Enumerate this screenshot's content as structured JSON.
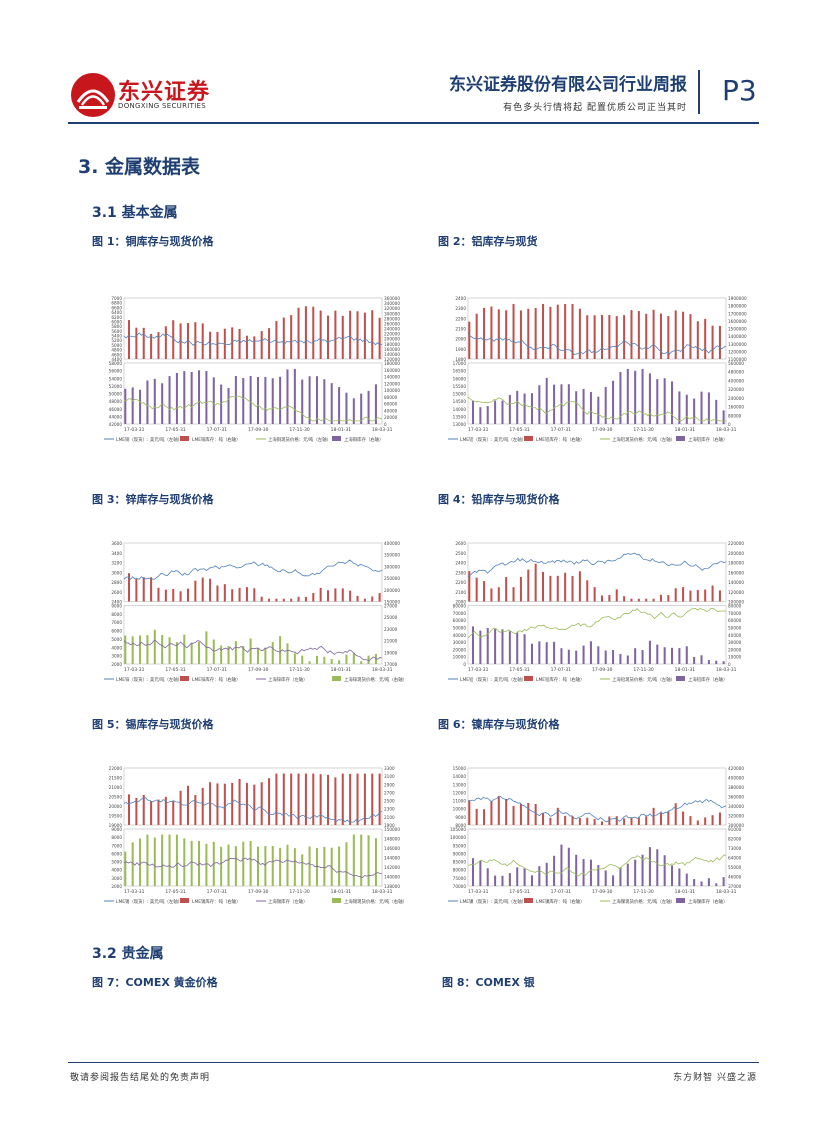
{
  "header": {
    "logo_cn": "东兴证券",
    "logo_en": "DONGXING SECURITIES",
    "title": "东兴证券股份有限公司行业周报",
    "subtitle": "有色多头行情将起  配置优质公司正当其时",
    "page": "P3"
  },
  "section": {
    "title": "3. 金属数据表",
    "sub1": "3.1  基本金属",
    "sub2": "3.2  贵金属"
  },
  "figures": [
    {
      "caption": "图 1：铜库存与现货价格"
    },
    {
      "caption": "图 2：铝库存与现货"
    },
    {
      "caption": "图 3：锌库存与现货价格"
    },
    {
      "caption": "图 4：铅库存与现货价格"
    },
    {
      "caption": "图 5：锡库存与现货价格"
    },
    {
      "caption": "图 6：镍库存与现货价格"
    },
    {
      "caption": "图 7：COMEX 黄金价格"
    },
    {
      "caption": "图 8：COMEX 银"
    }
  ],
  "footer": {
    "left": "敬请参阅报告结尾处的免责声明",
    "right": "东方财智 兴盛之源"
  },
  "colors": {
    "brand_blue": "#1f3f73",
    "brand_red": "#c8161d",
    "bar_red": "#c0504d",
    "bar_purple": "#8064a2",
    "bar_green": "#9bbb59",
    "line_blue": "#4f81bd"
  },
  "chart_data": [
    {
      "id": "fig1",
      "type": "bar+line",
      "x_ticks": [
        "17-03-31",
        "17-05-31",
        "17-07-31",
        "17-09-30",
        "17-11-30",
        "18-01-31",
        "18-03-31"
      ],
      "top": {
        "y_left": [
          "4400",
          "4600",
          "4800",
          "5000",
          "5200",
          "5400",
          "5600",
          "5800",
          "6000",
          "6200",
          "6400",
          "6600",
          "6800",
          "7000"
        ],
        "y_right": [
          "120000",
          "140000",
          "160000",
          "180000",
          "200000",
          "220000",
          "240000",
          "260000",
          "280000",
          "300000",
          "320000",
          "340000",
          "360000"
        ],
        "bar_color": "bar_red",
        "line_color": "line_blue"
      },
      "bottom": {
        "y_left": [
          "42000",
          "44000",
          "46000",
          "48000",
          "50000",
          "52000",
          "54000",
          "56000",
          "58000"
        ],
        "y_right": [
          "0",
          "20000",
          "40000",
          "60000",
          "80000",
          "100000",
          "120000",
          "140000",
          "160000",
          "180000"
        ],
        "bar_color": "bar_purple",
        "line_color": "bar_green"
      },
      "legend": [
        "LME铜（现货）: 美元/吨（左轴）",
        "LME铜库存：吨（右轴）",
        "上海铜现货价格：元/吨（左轴）",
        "上海铜库存（右轴）"
      ]
    },
    {
      "id": "fig2",
      "type": "bar+line",
      "x_ticks": [
        "17-03-31",
        "17-05-31",
        "17-07-31",
        "17-09-30",
        "17-11-30",
        "18-01-31",
        "18-03-31"
      ],
      "top": {
        "y_left": [
          "1800",
          "1900",
          "2000",
          "2100",
          "2200",
          "2300",
          "2400"
        ],
        "y_right": [
          "1100000",
          "1200000",
          "1300000",
          "1400000",
          "1500000",
          "1600000",
          "1700000",
          "1800000",
          "1900000"
        ],
        "bar_color": "bar_red",
        "line_color": "line_blue"
      },
      "bottom": {
        "y_left": [
          "13000",
          "13500",
          "14000",
          "14500",
          "15000",
          "15500",
          "16000",
          "16500",
          "17000"
        ],
        "y_right": [
          "0",
          "80000",
          "160000",
          "240000",
          "320000",
          "400000",
          "480000",
          "560000"
        ],
        "bar_color": "bar_purple",
        "line_color": "bar_green"
      },
      "legend": [
        "LME铝（现货）: 美元/吨（左轴）",
        "LME铝库存：吨（右轴）",
        "上海铝现货价格：元/吨（左轴）",
        "上海铝库存（右轴）"
      ]
    },
    {
      "id": "fig3",
      "type": "bar+line",
      "x_ticks": [
        "17-03-31",
        "17-05-31",
        "17-07-31",
        "17-09-30",
        "17-11-30",
        "18-01-31",
        "18-03-31"
      ],
      "top": {
        "y_left": [
          "2400",
          "2600",
          "2800",
          "3000",
          "3200",
          "3400",
          "3600"
        ],
        "y_right": [
          "150000",
          "200000",
          "250000",
          "300000",
          "350000",
          "400000"
        ],
        "bar_color": "bar_red",
        "line_color": "line_blue"
      },
      "bottom": {
        "y_left": [
          "2000",
          "3000",
          "4000",
          "5000",
          "6000",
          "7000",
          "8000",
          "9000"
        ],
        "y_right": [
          "17000",
          "19000",
          "21000",
          "23000",
          "25000",
          "27000"
        ],
        "bar_color": "bar_green",
        "line_color": "bar_purple"
      },
      "legend": [
        "LME锌（现货）: 美元/吨（左轴）",
        "LME锌库存：吨（右轴）",
        "上海锌库存（左轴）",
        "上海锌现货价格：元/吨（右轴）"
      ]
    },
    {
      "id": "fig4",
      "type": "bar+line",
      "x_ticks": [
        "17-03-31",
        "17-05-31",
        "17-07-31",
        "17-09-30",
        "17-11-30",
        "18-01-31",
        "18-03-31"
      ],
      "top": {
        "y_left": [
          "2000",
          "2100",
          "2200",
          "2300",
          "2400",
          "2500",
          "2600"
        ],
        "y_right": [
          "100000",
          "120000",
          "140000",
          "160000",
          "180000",
          "200000",
          "220000"
        ],
        "bar_color": "bar_red",
        "line_color": "line_blue"
      },
      "bottom": {
        "y_left": [
          "0",
          "10000",
          "20000",
          "30000",
          "40000",
          "50000",
          "60000",
          "70000",
          "80000"
        ],
        "y_right": [
          "0",
          "10000",
          "20000",
          "30000",
          "40000",
          "50000",
          "60000",
          "70000",
          "80000"
        ],
        "bar_color": "bar_purple",
        "line_color": "bar_green"
      },
      "legend": [
        "LME铅（现货）: 美元/吨（左轴）",
        "LME铅库存：吨（右轴）",
        "上海铅现货价格：元/吨（左轴）",
        "上海铅库存（右轴）"
      ]
    },
    {
      "id": "fig5",
      "type": "bar+line",
      "x_ticks": [
        "17-03-31",
        "17-05-31",
        "17-07-31",
        "17-09-30",
        "17-11-30",
        "18-01-31",
        "18-03-31"
      ],
      "top": {
        "y_left": [
          "19000",
          "19500",
          "20000",
          "20500",
          "21000",
          "21500",
          "22000"
        ],
        "y_right": [
          "1900",
          "2100",
          "2300",
          "2500",
          "2700",
          "2900",
          "3100",
          "3300"
        ],
        "bar_color": "bar_red",
        "line_color": "line_blue"
      },
      "bottom": {
        "y_left": [
          "2000",
          "3000",
          "4000",
          "5000",
          "6000",
          "7000",
          "8000",
          "9000"
        ],
        "y_right": [
          "138000",
          "140000",
          "142000",
          "144000",
          "146000",
          "148000",
          "150000"
        ],
        "bar_color": "bar_green",
        "line_color": "bar_purple"
      },
      "legend": [
        "LME锡（现货）: 美元/吨（左轴）",
        "LME锡库存：吨（右轴）",
        "上海锡库存（左轴）",
        "上海锡现货价格：元/吨（右轴）"
      ]
    },
    {
      "id": "fig6",
      "type": "bar+line",
      "x_ticks": [
        "17-03-31",
        "17-05-31",
        "17-07-31",
        "17-09-30",
        "17-11-30",
        "18-01-31",
        "18-03-31"
      ],
      "top": {
        "y_left": [
          "8000",
          "9000",
          "10000",
          "11000",
          "12000",
          "13000",
          "14000",
          "15000"
        ],
        "y_right": [
          "300000",
          "320000",
          "340000",
          "360000",
          "380000",
          "400000",
          "420000"
        ],
        "bar_color": "bar_red",
        "line_color": "line_blue"
      },
      "bottom": {
        "y_left": [
          "70000",
          "75000",
          "80000",
          "85000",
          "90000",
          "95000",
          "100000",
          "105000"
        ],
        "y_right": [
          "37000",
          "46000",
          "55000",
          "64000",
          "73000",
          "82000",
          "91000"
        ],
        "bar_color": "bar_purple",
        "line_color": "bar_green"
      },
      "legend": [
        "LME镍（现货）: 美元/吨（左轴）",
        "LME镍库存：吨（右轴）",
        "上海镍现货价格：元/吨（左轴）",
        "上海镍库存（右轴）"
      ]
    }
  ]
}
